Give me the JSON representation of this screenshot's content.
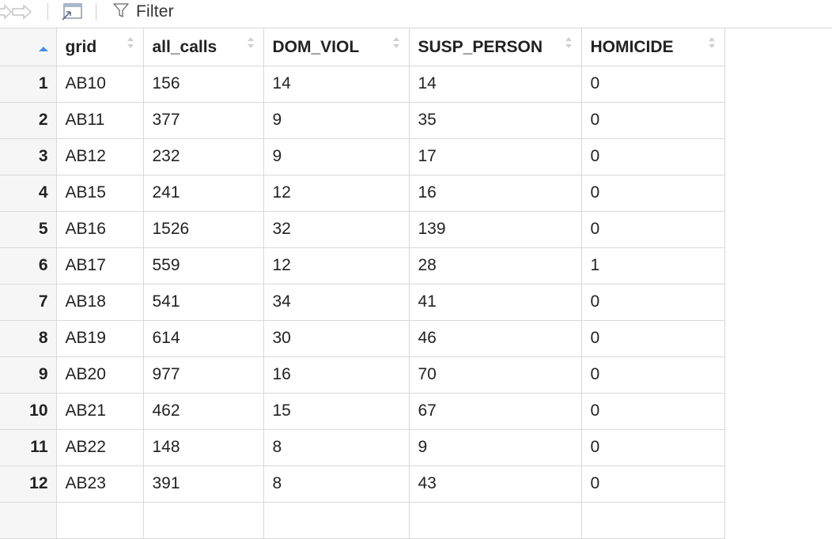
{
  "toolbar": {
    "back_icon": "back-arrow-icon",
    "forward_icon": "forward-arrow-icon",
    "popout_icon": "popout-window-icon",
    "filter_icon": "funnel-icon",
    "filter_label": "Filter"
  },
  "table": {
    "columns": [
      "grid",
      "all_calls",
      "DOM_VIOL",
      "SUSP_PERSON",
      "HOMICIDE"
    ],
    "sorted_indicator_color": "#4a90e2",
    "rows": [
      {
        "n": "1",
        "grid": "AB10",
        "all_calls": "156",
        "dom_viol": "14",
        "susp_person": "14",
        "homicide": "0"
      },
      {
        "n": "2",
        "grid": "AB11",
        "all_calls": "377",
        "dom_viol": "9",
        "susp_person": "35",
        "homicide": "0"
      },
      {
        "n": "3",
        "grid": "AB12",
        "all_calls": "232",
        "dom_viol": "9",
        "susp_person": "17",
        "homicide": "0"
      },
      {
        "n": "4",
        "grid": "AB15",
        "all_calls": "241",
        "dom_viol": "12",
        "susp_person": "16",
        "homicide": "0"
      },
      {
        "n": "5",
        "grid": "AB16",
        "all_calls": "1526",
        "dom_viol": "32",
        "susp_person": "139",
        "homicide": "0"
      },
      {
        "n": "6",
        "grid": "AB17",
        "all_calls": "559",
        "dom_viol": "12",
        "susp_person": "28",
        "homicide": "1"
      },
      {
        "n": "7",
        "grid": "AB18",
        "all_calls": "541",
        "dom_viol": "34",
        "susp_person": "41",
        "homicide": "0"
      },
      {
        "n": "8",
        "grid": "AB19",
        "all_calls": "614",
        "dom_viol": "30",
        "susp_person": "46",
        "homicide": "0"
      },
      {
        "n": "9",
        "grid": "AB20",
        "all_calls": "977",
        "dom_viol": "16",
        "susp_person": "70",
        "homicide": "0"
      },
      {
        "n": "10",
        "grid": "AB21",
        "all_calls": "462",
        "dom_viol": "15",
        "susp_person": "67",
        "homicide": "0"
      },
      {
        "n": "11",
        "grid": "AB22",
        "all_calls": "148",
        "dom_viol": "8",
        "susp_person": "9",
        "homicide": "0"
      },
      {
        "n": "12",
        "grid": "AB23",
        "all_calls": "391",
        "dom_viol": "8",
        "susp_person": "43",
        "homicide": "0"
      },
      {
        "n": "",
        "grid": "",
        "all_calls": "",
        "dom_viol": "",
        "susp_person": "",
        "homicide": ""
      }
    ]
  }
}
